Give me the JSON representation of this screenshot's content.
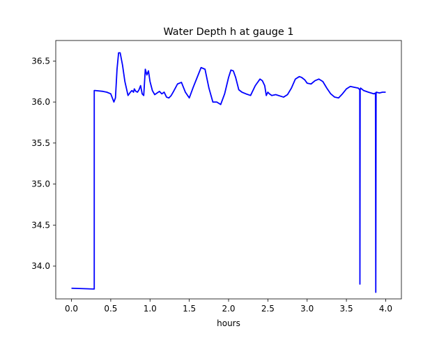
{
  "chart_data": {
    "type": "line",
    "title": "Water Depth h at gauge 1",
    "xlabel": "hours",
    "ylabel": "",
    "xlim": [
      -0.2,
      4.2
    ],
    "ylim": [
      33.6,
      36.75
    ],
    "xticks": [
      0.0,
      0.5,
      1.0,
      1.5,
      2.0,
      2.5,
      3.0,
      3.5,
      4.0
    ],
    "xtick_labels": [
      "0.0",
      "0.5",
      "1.0",
      "1.5",
      "2.0",
      "2.5",
      "3.0",
      "3.5",
      "4.0"
    ],
    "yticks": [
      34.0,
      34.5,
      35.0,
      35.5,
      36.0,
      36.5
    ],
    "ytick_labels": [
      "34.0",
      "34.5",
      "35.0",
      "35.5",
      "36.0",
      "36.5"
    ],
    "grid": false,
    "series": [
      {
        "color": "#0000ff",
        "x": [
          0.0,
          0.29,
          0.29,
          0.3,
          0.4,
          0.45,
          0.5,
          0.54,
          0.56,
          0.58,
          0.6,
          0.62,
          0.65,
          0.68,
          0.72,
          0.75,
          0.77,
          0.79,
          0.8,
          0.82,
          0.84,
          0.86,
          0.88,
          0.9,
          0.92,
          0.94,
          0.96,
          0.98,
          1.0,
          1.03,
          1.06,
          1.09,
          1.12,
          1.15,
          1.18,
          1.21,
          1.24,
          1.27,
          1.3,
          1.35,
          1.4,
          1.45,
          1.5,
          1.55,
          1.6,
          1.65,
          1.7,
          1.75,
          1.8,
          1.85,
          1.9,
          1.95,
          2.0,
          2.03,
          2.06,
          2.09,
          2.13,
          2.17,
          2.22,
          2.28,
          2.34,
          2.4,
          2.43,
          2.46,
          2.48,
          2.5,
          2.52,
          2.55,
          2.6,
          2.7,
          2.75,
          2.8,
          2.85,
          2.9,
          2.93,
          2.97,
          3.0,
          3.05,
          3.1,
          3.15,
          3.2,
          3.25,
          3.3,
          3.35,
          3.4,
          3.45,
          3.5,
          3.55,
          3.6,
          3.65,
          3.67,
          3.672,
          3.675,
          3.68,
          3.72,
          3.78,
          3.85,
          3.87,
          3.874,
          3.878,
          3.88,
          3.92,
          3.96,
          4.0
        ],
        "y": [
          33.73,
          33.72,
          36.14,
          36.14,
          36.13,
          36.12,
          36.1,
          36.0,
          36.05,
          36.4,
          36.6,
          36.6,
          36.45,
          36.25,
          36.08,
          36.12,
          36.14,
          36.12,
          36.16,
          36.13,
          36.12,
          36.15,
          36.2,
          36.1,
          36.08,
          36.4,
          36.33,
          36.38,
          36.25,
          36.14,
          36.09,
          36.11,
          36.13,
          36.1,
          36.12,
          36.06,
          36.05,
          36.08,
          36.13,
          36.22,
          36.24,
          36.12,
          36.05,
          36.18,
          36.3,
          36.42,
          36.4,
          36.17,
          36.0,
          36.0,
          35.97,
          36.1,
          36.3,
          36.39,
          36.38,
          36.3,
          36.15,
          36.12,
          36.1,
          36.08,
          36.2,
          36.28,
          36.26,
          36.2,
          36.08,
          36.12,
          36.1,
          36.08,
          36.09,
          36.06,
          36.09,
          36.17,
          36.28,
          36.31,
          36.3,
          36.27,
          36.23,
          36.22,
          36.26,
          36.28,
          36.25,
          36.17,
          36.1,
          36.06,
          36.05,
          36.1,
          36.16,
          36.19,
          36.18,
          36.17,
          36.15,
          33.78,
          36.15,
          36.17,
          36.14,
          36.12,
          36.1,
          36.11,
          33.68,
          36.1,
          36.12,
          36.11,
          36.12,
          36.12
        ]
      }
    ]
  }
}
